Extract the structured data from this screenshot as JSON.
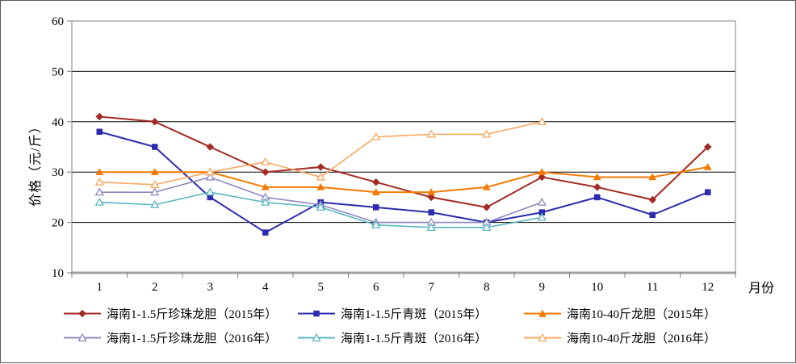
{
  "chart_data": {
    "type": "line",
    "title": "",
    "xlabel": "月份",
    "ylabel": "价格（元/斤）",
    "x_categories": [
      "1",
      "2",
      "3",
      "4",
      "5",
      "6",
      "7",
      "8",
      "9",
      "10",
      "11",
      "12"
    ],
    "ylim": [
      10,
      60
    ],
    "yticks": [
      10,
      20,
      30,
      40,
      50,
      60
    ],
    "grid": "horizontal",
    "legend_position": "bottom",
    "style": {
      "background": "#FFFFFF",
      "gridline_color": "#000000",
      "axis_color": "#808080",
      "plot_border_color": "#808080",
      "text_color": "#000000"
    },
    "series": [
      {
        "name": "海南1-1.5斤珍珠龙胆（2015年）",
        "color": "#A32A23",
        "marker": "diamond",
        "marker_filled": true,
        "values": [
          41,
          40,
          35,
          30,
          31,
          28,
          25,
          23,
          29,
          27,
          24.5,
          35
        ]
      },
      {
        "name": "海南1-1.5斤青斑（2015年）",
        "color": "#2B2BAE",
        "marker": "square",
        "marker_filled": true,
        "values": [
          38,
          35,
          25,
          18,
          24,
          23,
          22,
          20,
          22,
          25,
          21.5,
          26
        ]
      },
      {
        "name": "海南10-40斤龙胆（2015年）",
        "color": "#F57900",
        "marker": "triangle",
        "marker_filled": true,
        "values": [
          30,
          30,
          30,
          27,
          27,
          26,
          26,
          27,
          30,
          29,
          29,
          31
        ]
      },
      {
        "name": "海南1-1.5斤珍珠龙胆（2016年）",
        "color": "#8D88C2",
        "marker": "triangle",
        "marker_filled": false,
        "values": [
          26,
          26,
          29,
          25,
          23.5,
          20,
          20,
          20,
          24,
          null,
          null,
          null
        ]
      },
      {
        "name": "海南1-1.5斤青斑（2016年）",
        "color": "#58B6C0",
        "marker": "triangle",
        "marker_filled": false,
        "values": [
          24,
          23.5,
          26,
          24,
          23,
          19.5,
          19,
          19,
          21,
          null,
          null,
          null
        ]
      },
      {
        "name": "海南10-40斤龙胆（2016年）",
        "color": "#F9A861",
        "marker": "triangle",
        "marker_filled": false,
        "values": [
          28,
          27.5,
          30,
          32,
          29,
          37,
          37.5,
          37.5,
          40,
          null,
          null,
          null
        ]
      }
    ]
  }
}
